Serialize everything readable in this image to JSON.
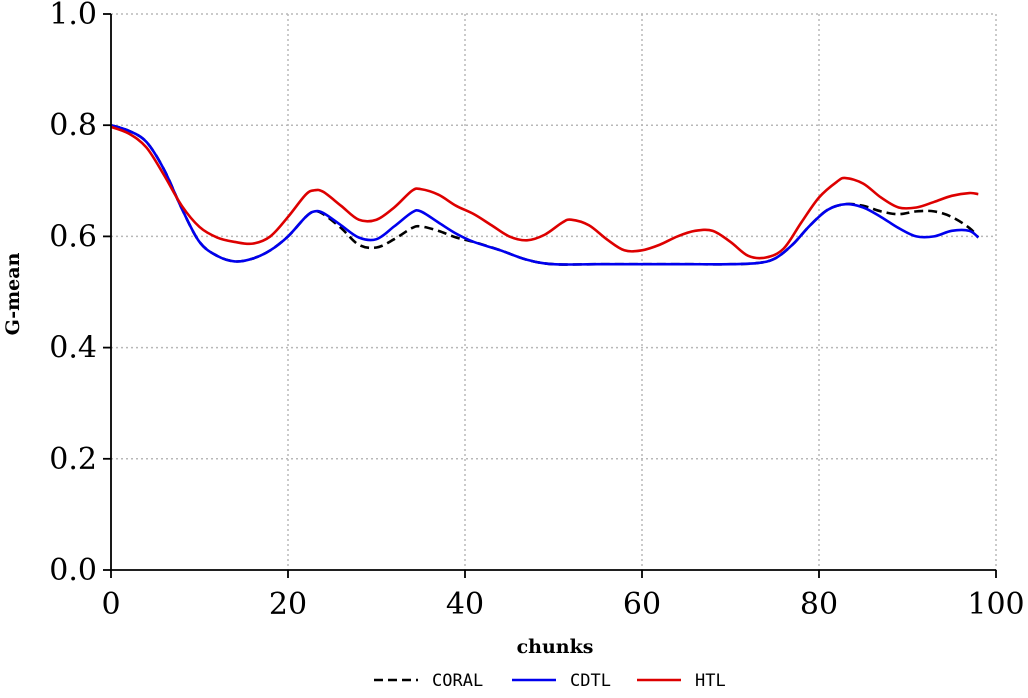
{
  "chart_data": {
    "type": "line",
    "title": "",
    "xlabel": "chunks",
    "ylabel": "G-mean",
    "xlim": [
      0,
      100
    ],
    "ylim": [
      0.0,
      1.0
    ],
    "x_ticks": [
      0,
      20,
      40,
      60,
      80,
      100
    ],
    "x_tick_labels": [
      "0",
      "20",
      "40",
      "60",
      "80",
      "100"
    ],
    "y_ticks": [
      0.0,
      0.2,
      0.4,
      0.6,
      0.8,
      1.0
    ],
    "y_tick_labels": [
      "0.0",
      "0.2",
      "0.4",
      "0.6",
      "0.8",
      "1.0"
    ],
    "grid": true,
    "legend_position": "bottom",
    "series": [
      {
        "name": "CORAL",
        "color": "#000000",
        "style": "dashed",
        "points": [
          [
            0,
            0.8
          ],
          [
            2,
            0.79
          ],
          [
            4,
            0.77
          ],
          [
            6,
            0.72
          ],
          [
            8,
            0.65
          ],
          [
            10,
            0.59
          ],
          [
            12,
            0.565
          ],
          [
            14,
            0.555
          ],
          [
            16,
            0.56
          ],
          [
            18,
            0.575
          ],
          [
            20,
            0.6
          ],
          [
            22,
            0.635
          ],
          [
            23,
            0.645
          ],
          [
            24,
            0.64
          ],
          [
            26,
            0.615
          ],
          [
            28,
            0.585
          ],
          [
            30,
            0.58
          ],
          [
            32,
            0.595
          ],
          [
            34,
            0.615
          ],
          [
            35,
            0.618
          ],
          [
            37,
            0.61
          ],
          [
            39,
            0.598
          ],
          [
            41,
            0.59
          ],
          [
            44,
            0.575
          ],
          [
            47,
            0.558
          ],
          [
            50,
            0.55
          ],
          [
            55,
            0.55
          ],
          [
            60,
            0.55
          ],
          [
            65,
            0.55
          ],
          [
            70,
            0.55
          ],
          [
            73,
            0.552
          ],
          [
            75,
            0.56
          ],
          [
            77,
            0.585
          ],
          [
            79,
            0.62
          ],
          [
            81,
            0.648
          ],
          [
            83,
            0.658
          ],
          [
            85,
            0.655
          ],
          [
            87,
            0.645
          ],
          [
            89,
            0.64
          ],
          [
            91,
            0.645
          ],
          [
            93,
            0.645
          ],
          [
            95,
            0.635
          ],
          [
            97,
            0.615
          ],
          [
            98,
            0.598
          ]
        ]
      },
      {
        "name": "CDTL",
        "color": "#0000ee",
        "style": "solid",
        "points": [
          [
            0,
            0.8
          ],
          [
            2,
            0.79
          ],
          [
            4,
            0.77
          ],
          [
            6,
            0.72
          ],
          [
            8,
            0.65
          ],
          [
            10,
            0.59
          ],
          [
            12,
            0.565
          ],
          [
            14,
            0.555
          ],
          [
            16,
            0.56
          ],
          [
            18,
            0.575
          ],
          [
            20,
            0.6
          ],
          [
            22,
            0.635
          ],
          [
            23,
            0.645
          ],
          [
            24,
            0.642
          ],
          [
            26,
            0.62
          ],
          [
            28,
            0.598
          ],
          [
            30,
            0.595
          ],
          [
            32,
            0.618
          ],
          [
            34,
            0.643
          ],
          [
            35,
            0.645
          ],
          [
            37,
            0.625
          ],
          [
            39,
            0.605
          ],
          [
            41,
            0.59
          ],
          [
            44,
            0.575
          ],
          [
            47,
            0.558
          ],
          [
            50,
            0.55
          ],
          [
            55,
            0.55
          ],
          [
            60,
            0.55
          ],
          [
            65,
            0.55
          ],
          [
            70,
            0.55
          ],
          [
            73,
            0.552
          ],
          [
            75,
            0.56
          ],
          [
            77,
            0.585
          ],
          [
            79,
            0.62
          ],
          [
            81,
            0.648
          ],
          [
            83,
            0.658
          ],
          [
            85,
            0.652
          ],
          [
            87,
            0.635
          ],
          [
            89,
            0.615
          ],
          [
            91,
            0.6
          ],
          [
            93,
            0.6
          ],
          [
            95,
            0.61
          ],
          [
            97,
            0.61
          ],
          [
            98,
            0.598
          ]
        ]
      },
      {
        "name": "HTL",
        "color": "#dd0000",
        "style": "solid",
        "points": [
          [
            0,
            0.797
          ],
          [
            2,
            0.785
          ],
          [
            4,
            0.76
          ],
          [
            6,
            0.71
          ],
          [
            8,
            0.655
          ],
          [
            10,
            0.617
          ],
          [
            12,
            0.598
          ],
          [
            14,
            0.59
          ],
          [
            16,
            0.587
          ],
          [
            18,
            0.6
          ],
          [
            20,
            0.635
          ],
          [
            22,
            0.675
          ],
          [
            23,
            0.683
          ],
          [
            24,
            0.68
          ],
          [
            26,
            0.655
          ],
          [
            28,
            0.63
          ],
          [
            30,
            0.63
          ],
          [
            32,
            0.652
          ],
          [
            34,
            0.682
          ],
          [
            35,
            0.685
          ],
          [
            37,
            0.675
          ],
          [
            39,
            0.655
          ],
          [
            41,
            0.64
          ],
          [
            43,
            0.62
          ],
          [
            45,
            0.6
          ],
          [
            47,
            0.593
          ],
          [
            49,
            0.603
          ],
          [
            51,
            0.625
          ],
          [
            52,
            0.63
          ],
          [
            54,
            0.62
          ],
          [
            56,
            0.595
          ],
          [
            58,
            0.575
          ],
          [
            60,
            0.575
          ],
          [
            62,
            0.585
          ],
          [
            64,
            0.6
          ],
          [
            66,
            0.61
          ],
          [
            68,
            0.61
          ],
          [
            70,
            0.59
          ],
          [
            72,
            0.565
          ],
          [
            74,
            0.562
          ],
          [
            76,
            0.578
          ],
          [
            78,
            0.625
          ],
          [
            80,
            0.67
          ],
          [
            82,
            0.698
          ],
          [
            83,
            0.705
          ],
          [
            85,
            0.695
          ],
          [
            87,
            0.67
          ],
          [
            89,
            0.652
          ],
          [
            91,
            0.652
          ],
          [
            93,
            0.662
          ],
          [
            95,
            0.673
          ],
          [
            97,
            0.678
          ],
          [
            98,
            0.676
          ]
        ]
      }
    ]
  }
}
